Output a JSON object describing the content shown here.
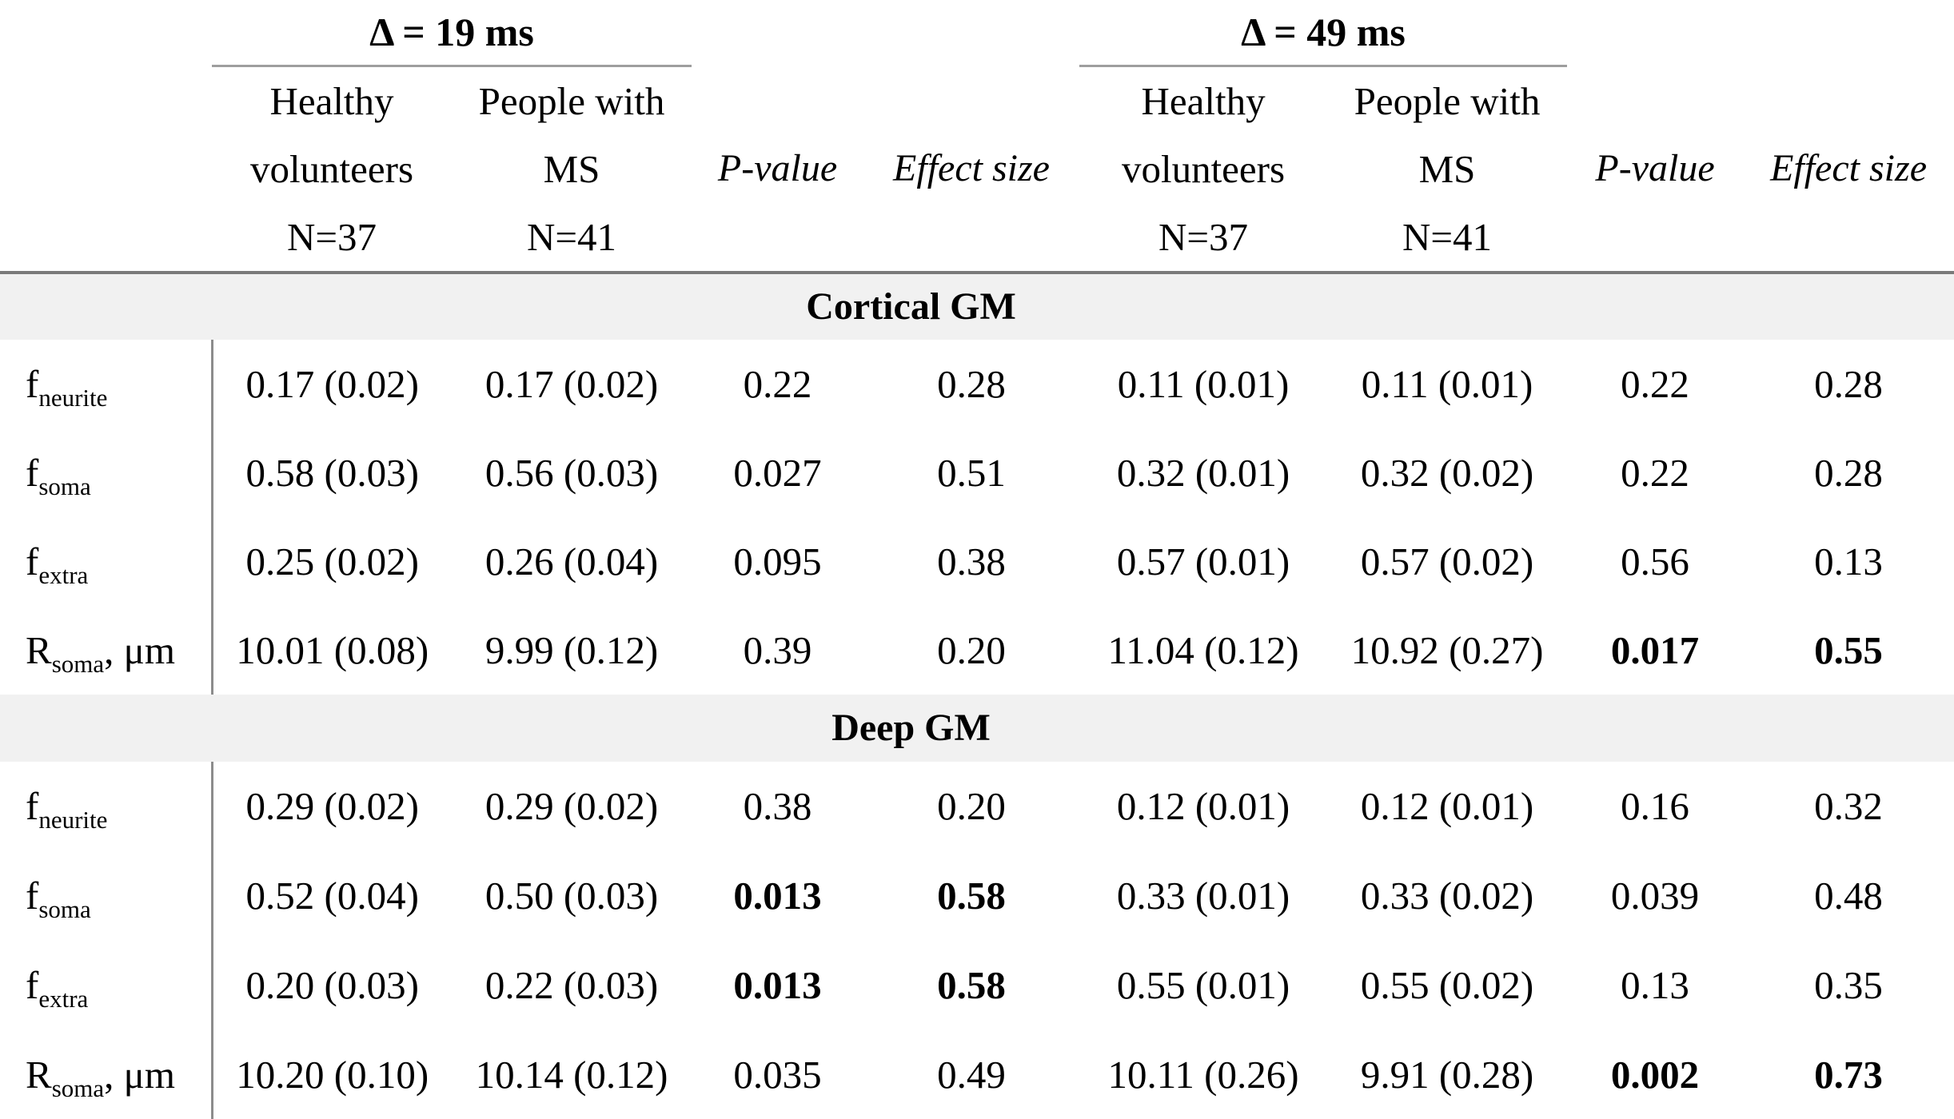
{
  "table": {
    "groups": [
      {
        "delta": "Δ = 19 ms"
      },
      {
        "delta": "Δ = 49 ms"
      }
    ],
    "col_headers": {
      "healthy": [
        "Healthy",
        "volunteers",
        "N=37"
      ],
      "ms": [
        "People with",
        "MS",
        "N=41"
      ],
      "pvalue": "P-value",
      "effect_size": "Effect size"
    },
    "sections": [
      {
        "title": "Cortical GM",
        "rows": [
          {
            "label": {
              "base": "f",
              "sub": "neurite",
              "rest": ""
            },
            "cells": [
              {
                "t": "0.17 (0.02)"
              },
              {
                "t": "0.17 (0.02)"
              },
              {
                "t": "0.22"
              },
              {
                "t": "0.28"
              },
              {
                "t": "0.11 (0.01)"
              },
              {
                "t": "0.11 (0.01)"
              },
              {
                "t": "0.22"
              },
              {
                "t": "0.28"
              }
            ]
          },
          {
            "label": {
              "base": "f",
              "sub": "soma",
              "rest": ""
            },
            "cells": [
              {
                "t": "0.58 (0.03)"
              },
              {
                "t": "0.56 (0.03)"
              },
              {
                "t": "0.027"
              },
              {
                "t": "0.51"
              },
              {
                "t": "0.32 (0.01)"
              },
              {
                "t": "0.32 (0.02)"
              },
              {
                "t": "0.22"
              },
              {
                "t": "0.28"
              }
            ]
          },
          {
            "label": {
              "base": "f",
              "sub": "extra",
              "rest": ""
            },
            "cells": [
              {
                "t": "0.25 (0.02)"
              },
              {
                "t": "0.26 (0.04)"
              },
              {
                "t": "0.095"
              },
              {
                "t": "0.38"
              },
              {
                "t": "0.57 (0.01)"
              },
              {
                "t": "0.57 (0.02)"
              },
              {
                "t": "0.56"
              },
              {
                "t": "0.13"
              }
            ]
          },
          {
            "label": {
              "base": "R",
              "sub": "soma",
              "rest": ", μm"
            },
            "cells": [
              {
                "t": "10.01 (0.08)"
              },
              {
                "t": "9.99 (0.12)"
              },
              {
                "t": "0.39"
              },
              {
                "t": "0.20"
              },
              {
                "t": "11.04 (0.12)"
              },
              {
                "t": "10.92 (0.27)"
              },
              {
                "t": "0.017",
                "b": true
              },
              {
                "t": "0.55",
                "b": true
              }
            ]
          }
        ]
      },
      {
        "title": "Deep GM",
        "rows": [
          {
            "label": {
              "base": "f",
              "sub": "neurite",
              "rest": ""
            },
            "cells": [
              {
                "t": "0.29 (0.02)"
              },
              {
                "t": "0.29 (0.02)"
              },
              {
                "t": "0.38"
              },
              {
                "t": "0.20"
              },
              {
                "t": "0.12 (0.01)"
              },
              {
                "t": "0.12 (0.01)"
              },
              {
                "t": "0.16"
              },
              {
                "t": "0.32"
              }
            ]
          },
          {
            "label": {
              "base": "f",
              "sub": "soma",
              "rest": ""
            },
            "cells": [
              {
                "t": "0.52 (0.04)"
              },
              {
                "t": "0.50 (0.03)"
              },
              {
                "t": "0.013",
                "b": true
              },
              {
                "t": "0.58",
                "b": true
              },
              {
                "t": "0.33 (0.01)"
              },
              {
                "t": "0.33 (0.02)"
              },
              {
                "t": "0.039"
              },
              {
                "t": "0.48"
              }
            ]
          },
          {
            "label": {
              "base": "f",
              "sub": "extra",
              "rest": ""
            },
            "cells": [
              {
                "t": "0.20 (0.03)"
              },
              {
                "t": "0.22 (0.03)"
              },
              {
                "t": "0.013",
                "b": true
              },
              {
                "t": "0.58",
                "b": true
              },
              {
                "t": "0.55 (0.01)"
              },
              {
                "t": "0.55 (0.02)"
              },
              {
                "t": "0.13"
              },
              {
                "t": "0.35"
              }
            ]
          },
          {
            "label": {
              "base": "R",
              "sub": "soma",
              "rest": ", μm"
            },
            "cells": [
              {
                "t": "10.20 (0.10)"
              },
              {
                "t": "10.14 (0.12)"
              },
              {
                "t": "0.035"
              },
              {
                "t": "0.49"
              },
              {
                "t": "10.11 (0.26)"
              },
              {
                "t": "9.91 (0.28)"
              },
              {
                "t": "0.002",
                "b": true
              },
              {
                "t": "0.73",
                "b": true
              }
            ]
          }
        ]
      }
    ],
    "colors": {
      "band_bg": "#f1f1f1",
      "header_rule": "#7a7a7a",
      "delta_underline": "#9e9e9e",
      "divider": "#8c8c8c",
      "text": "#000000"
    }
  }
}
